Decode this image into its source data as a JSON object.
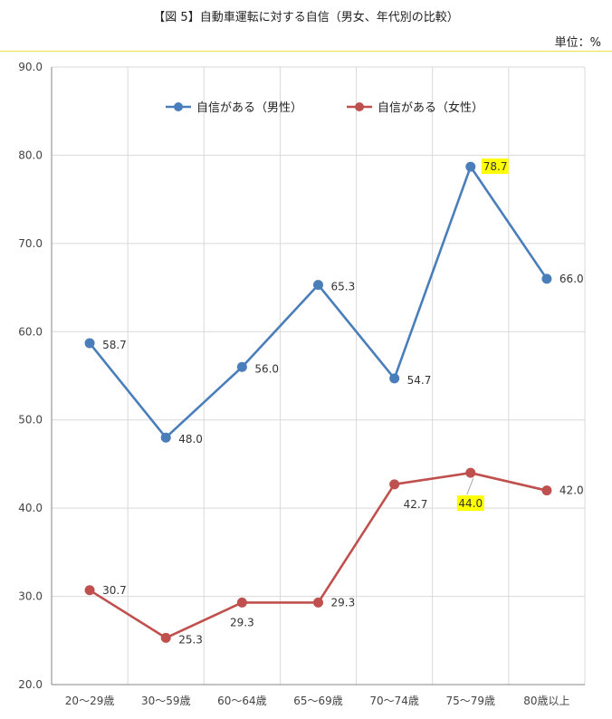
{
  "chart_data": {
    "type": "line",
    "title": "【図 5】自動車運転に対する自信（男女、年代別の比較）",
    "unit": "単位：%",
    "categories": [
      "20〜29歳",
      "30〜59歳",
      "60〜64歳",
      "65〜69歳",
      "70〜74歳",
      "75〜79歳",
      "80歳以上"
    ],
    "series": [
      {
        "name": "自信がある（男性）",
        "values": [
          58.7,
          48.0,
          56.0,
          65.3,
          54.7,
          78.7,
          66.0
        ],
        "labels": [
          "58.7",
          "48.0",
          "56.0",
          "65.3",
          "54.7",
          "78.7",
          "66.0"
        ],
        "color": "#4a7ebb",
        "highlight_index": 5
      },
      {
        "name": "自信がある（女性）",
        "values": [
          30.7,
          25.3,
          29.3,
          29.3,
          42.7,
          44.0,
          42.0
        ],
        "labels": [
          "30.7",
          "25.3",
          "29.3",
          "29.3",
          "42.7",
          "44.0",
          "42.0"
        ],
        "color": "#c0504d",
        "highlight_index": 5
      }
    ],
    "ylim": [
      20,
      90
    ],
    "yticks": [
      "20.0",
      "30.0",
      "40.0",
      "50.0",
      "60.0",
      "70.0",
      "80.0",
      "90.0"
    ],
    "highlight_color": "#ffff00",
    "grid": true,
    "legend": "top"
  }
}
